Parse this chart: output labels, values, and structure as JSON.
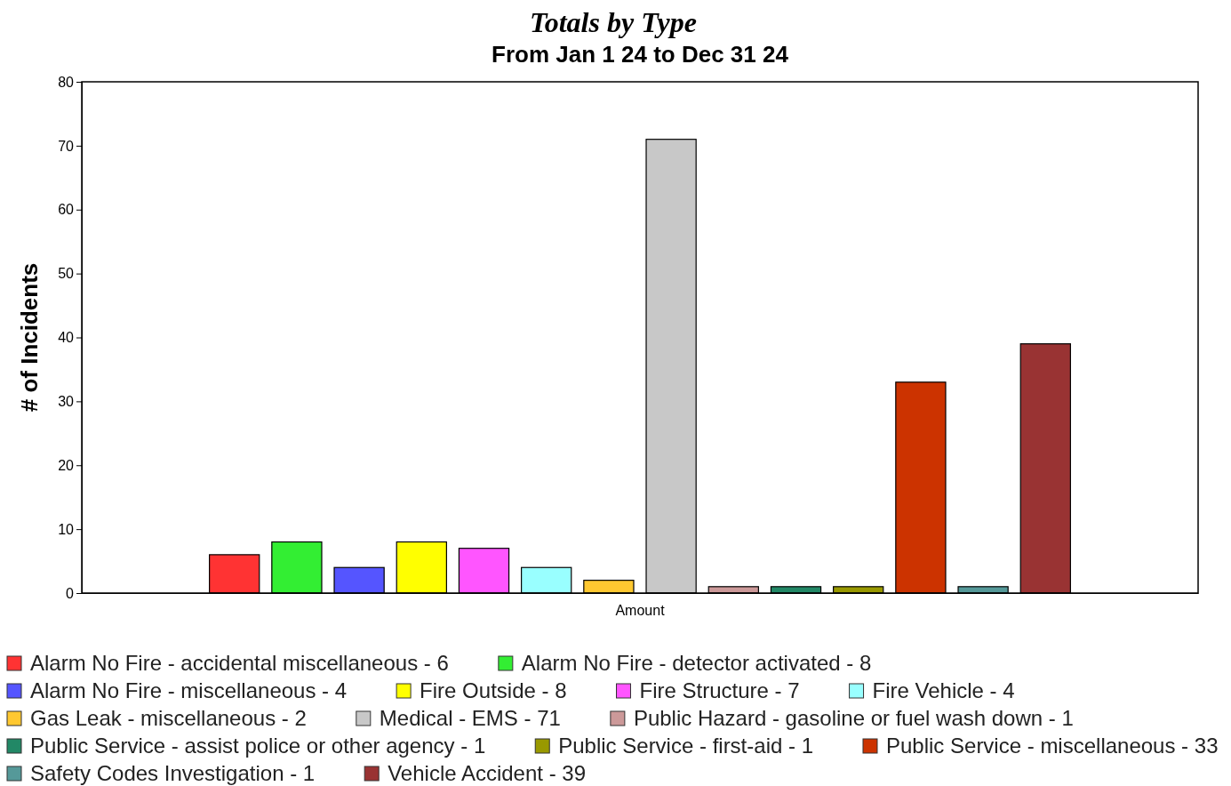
{
  "chart_data": {
    "type": "bar",
    "title": "Totals by Type",
    "subtitle": "From Jan 1 24 to Dec 31 24",
    "ylabel": "# of Incidents",
    "categories": [
      "Amount"
    ],
    "ylim": [
      0,
      80
    ],
    "yticks": [
      0,
      10,
      20,
      30,
      40,
      50,
      60,
      70,
      80
    ],
    "grid": false,
    "legend": "bottom",
    "series": [
      {
        "name": "Alarm No Fire - accidental miscellaneous - 6",
        "color": "#ff3333",
        "values": [
          6
        ]
      },
      {
        "name": "Alarm No Fire - detector activated - 8",
        "color": "#33ee33",
        "values": [
          8
        ]
      },
      {
        "name": "Alarm No Fire - miscellaneous - 4",
        "color": "#5555ff",
        "values": [
          4
        ]
      },
      {
        "name": "Fire Outside - 8",
        "color": "#ffff00",
        "values": [
          8
        ]
      },
      {
        "name": "Fire Structure - 7",
        "color": "#ff55ff",
        "values": [
          7
        ]
      },
      {
        "name": "Fire Vehicle - 4",
        "color": "#99ffff",
        "values": [
          4
        ]
      },
      {
        "name": "Gas Leak - miscellaneous - 2",
        "color": "#ffc830",
        "values": [
          2
        ]
      },
      {
        "name": "Medical - EMS - 71",
        "color": "#c8c8c8",
        "values": [
          71
        ]
      },
      {
        "name": "Public Hazard - gasoline or fuel wash down - 1",
        "color": "#cc9999",
        "values": [
          1
        ]
      },
      {
        "name": "Public Service - assist police or other agency - 1",
        "color": "#228866",
        "values": [
          1
        ]
      },
      {
        "name": "Public Service - first-aid - 1",
        "color": "#999900",
        "values": [
          1
        ]
      },
      {
        "name": "Public Service - miscellaneous - 33",
        "color": "#cc3300",
        "values": [
          33
        ]
      },
      {
        "name": "Safety Codes Investigation - 1",
        "color": "#559999",
        "values": [
          1
        ]
      },
      {
        "name": "Vehicle Accident - 39",
        "color": "#993333",
        "values": [
          39
        ]
      }
    ]
  }
}
